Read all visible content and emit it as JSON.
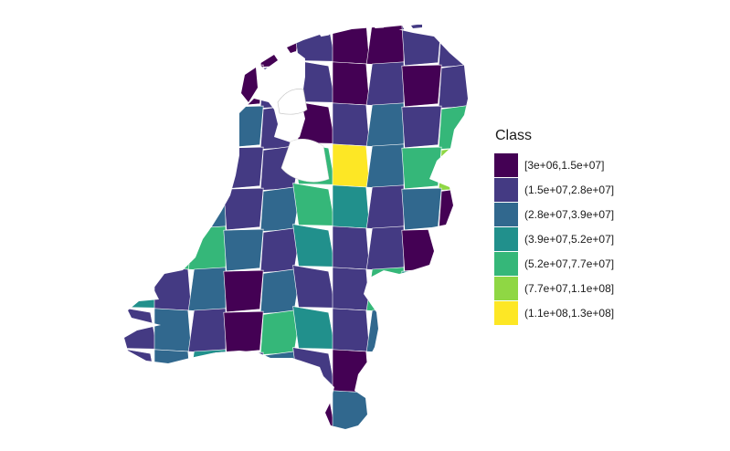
{
  "legend": {
    "title": "Class",
    "classes": [
      {
        "label": "[3e+06,1.5e+07]",
        "color": "#440154"
      },
      {
        "label": "(1.5e+07,2.8e+07]",
        "color": "#443a83"
      },
      {
        "label": "(2.8e+07,3.9e+07]",
        "color": "#31688e"
      },
      {
        "label": "(3.9e+07,5.2e+07]",
        "color": "#21908c"
      },
      {
        "label": "(5.2e+07,7.7e+07]",
        "color": "#35b779"
      },
      {
        "label": "(7.7e+07,1.1e+08]",
        "color": "#8fd744"
      },
      {
        "label": "(1.1e+08,1.3e+08]",
        "color": "#fde725"
      }
    ]
  },
  "map": {
    "background": "#ffffff",
    "border_color": "#ffffff",
    "region_classes": [
      0,
      1,
      1,
      2,
      0,
      1,
      0,
      0,
      1,
      1,
      0,
      0,
      1,
      0,
      1,
      1,
      0,
      1,
      0,
      1,
      1,
      1,
      3,
      2,
      1,
      0,
      1,
      2,
      1,
      4,
      2,
      4,
      2,
      1,
      1,
      4,
      6,
      2,
      4,
      5,
      6,
      4,
      2,
      1,
      2,
      4,
      3,
      1,
      2,
      0,
      1,
      4,
      4,
      2,
      1,
      3,
      1,
      1,
      0,
      1,
      3,
      1,
      2,
      0,
      2,
      1,
      1,
      4,
      3,
      1,
      1,
      2,
      1,
      0,
      4,
      3,
      1,
      2,
      0,
      4,
      1,
      2,
      3,
      1,
      2,
      1,
      0,
      1,
      2,
      2,
      1,
      1,
      0,
      1,
      1,
      0,
      2,
      1,
      1,
      2
    ]
  }
}
